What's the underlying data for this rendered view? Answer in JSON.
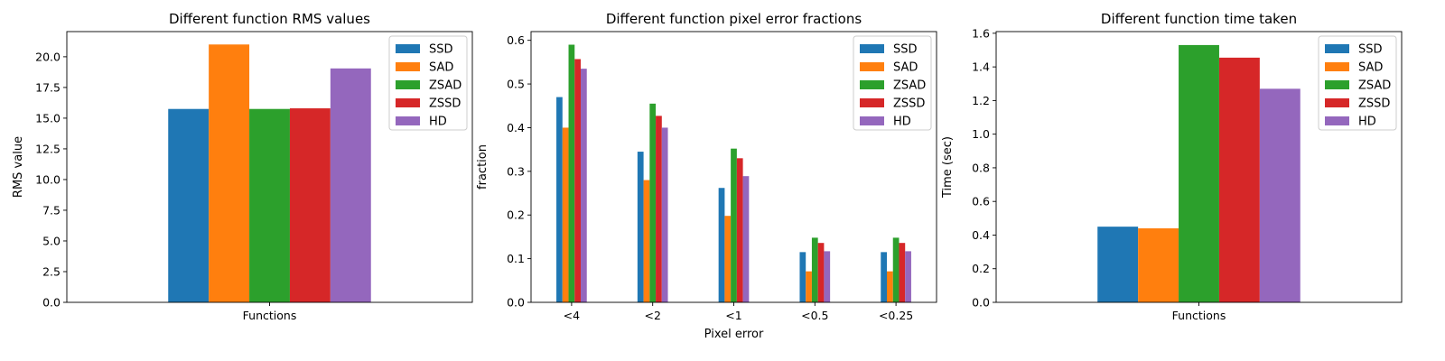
{
  "chart_data": [
    {
      "type": "bar",
      "title": "Different function RMS values",
      "xlabel": "",
      "ylabel": "RMS value",
      "categories": [
        "Functions"
      ],
      "ylim": [
        0,
        22.05
      ],
      "yticks": [
        0.0,
        2.5,
        5.0,
        7.5,
        10.0,
        12.5,
        15.0,
        17.5,
        20.0
      ],
      "ytick_labels": [
        "0.0",
        "2.5",
        "5.0",
        "7.5",
        "10.0",
        "12.5",
        "15.0",
        "17.5",
        "20.0"
      ],
      "legend": "top-right",
      "series": [
        {
          "name": "SSD",
          "color": "#1f77b4",
          "values": [
            15.75
          ]
        },
        {
          "name": "SAD",
          "color": "#ff7f0e",
          "values": [
            21.0
          ]
        },
        {
          "name": "ZSAD",
          "color": "#2ca02c",
          "values": [
            15.75
          ]
        },
        {
          "name": "ZSSD",
          "color": "#d62728",
          "values": [
            15.8
          ]
        },
        {
          "name": "HD",
          "color": "#9467bd",
          "values": [
            19.05
          ]
        }
      ]
    },
    {
      "type": "bar",
      "title": "Different function pixel error fractions",
      "xlabel": "Pixel error",
      "ylabel": "fraction",
      "categories": [
        "<4",
        "<2",
        "<1",
        "<0.5",
        "<0.25"
      ],
      "ylim": [
        0,
        0.62
      ],
      "yticks": [
        0.0,
        0.1,
        0.2,
        0.3,
        0.4,
        0.5,
        0.6
      ],
      "ytick_labels": [
        "0.0",
        "0.1",
        "0.2",
        "0.3",
        "0.4",
        "0.5",
        "0.6"
      ],
      "legend": "top-right",
      "series": [
        {
          "name": "SSD",
          "color": "#1f77b4",
          "values": [
            0.47,
            0.345,
            0.262,
            0.115,
            0.115
          ]
        },
        {
          "name": "SAD",
          "color": "#ff7f0e",
          "values": [
            0.4,
            0.28,
            0.198,
            0.071,
            0.071
          ]
        },
        {
          "name": "ZSAD",
          "color": "#2ca02c",
          "values": [
            0.59,
            0.455,
            0.352,
            0.148,
            0.148
          ]
        },
        {
          "name": "ZSSD",
          "color": "#d62728",
          "values": [
            0.557,
            0.427,
            0.33,
            0.136,
            0.136
          ]
        },
        {
          "name": "HD",
          "color": "#9467bd",
          "values": [
            0.535,
            0.4,
            0.289,
            0.117,
            0.117
          ]
        }
      ]
    },
    {
      "type": "bar",
      "title": "Different function time taken",
      "xlabel": "",
      "ylabel": "Time (sec)",
      "categories": [
        "Functions"
      ],
      "ylim": [
        0,
        1.61
      ],
      "yticks": [
        0.0,
        0.2,
        0.4,
        0.6,
        0.8,
        1.0,
        1.2,
        1.4,
        1.6
      ],
      "ytick_labels": [
        "0.0",
        "0.2",
        "0.4",
        "0.6",
        "0.8",
        "1.0",
        "1.2",
        "1.4",
        "1.6"
      ],
      "legend": "top-right",
      "series": [
        {
          "name": "SSD",
          "color": "#1f77b4",
          "values": [
            0.45
          ]
        },
        {
          "name": "SAD",
          "color": "#ff7f0e",
          "values": [
            0.44
          ]
        },
        {
          "name": "ZSAD",
          "color": "#2ca02c",
          "values": [
            1.53
          ]
        },
        {
          "name": "ZSSD",
          "color": "#d62728",
          "values": [
            1.455
          ]
        },
        {
          "name": "HD",
          "color": "#9467bd",
          "values": [
            1.27
          ]
        }
      ]
    }
  ]
}
